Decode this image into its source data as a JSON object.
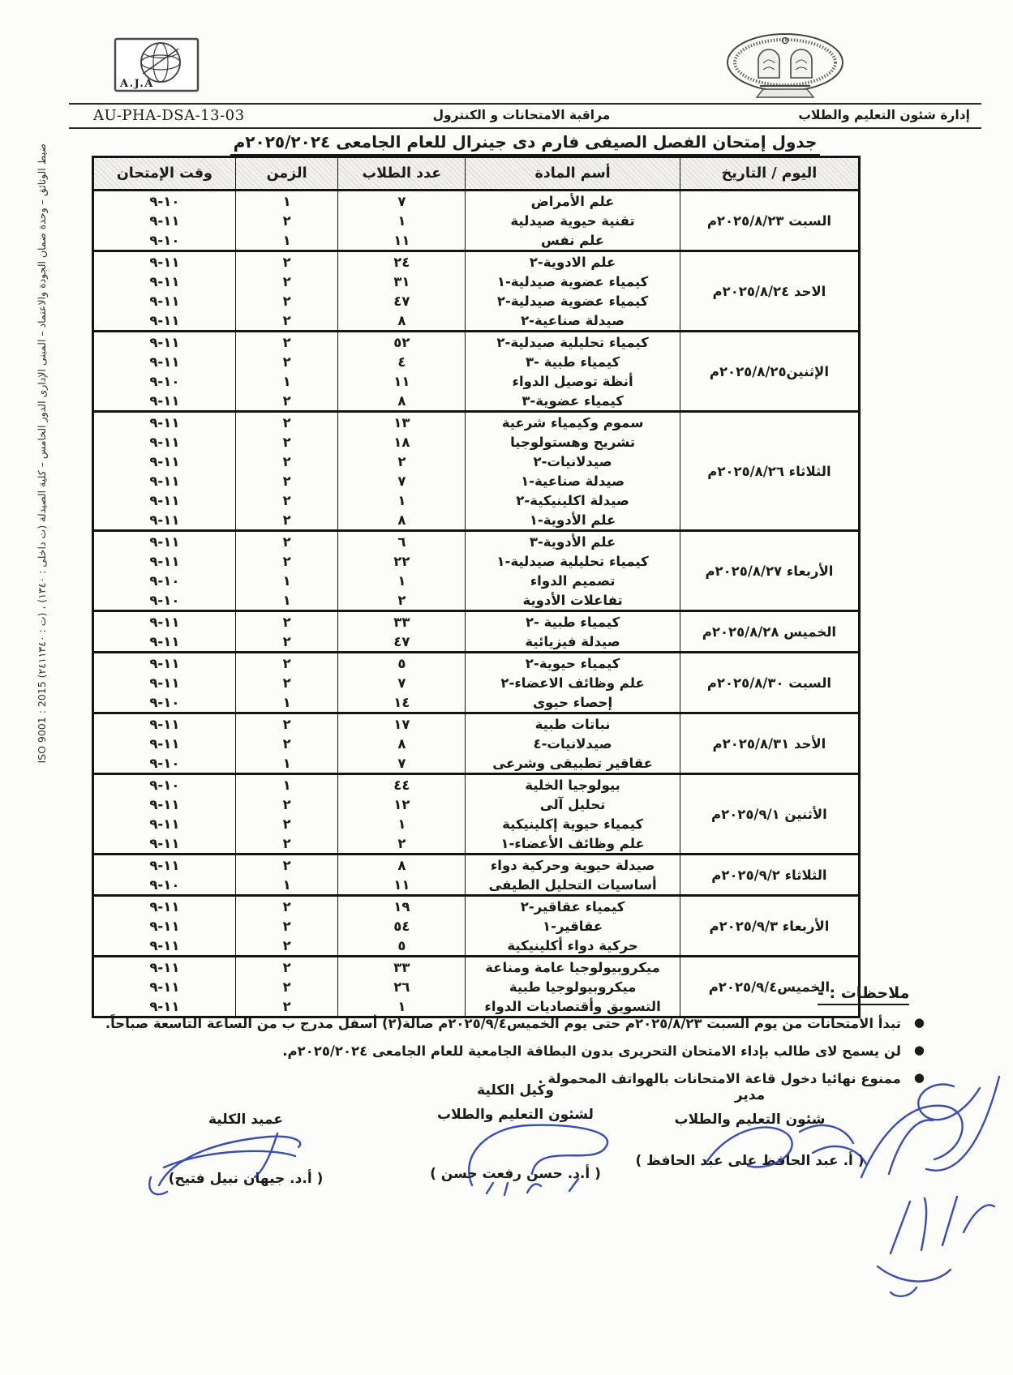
{
  "header": {
    "doc_code": "AU-PHA-DSA-13-03",
    "dept_right": "إدارة شئون التعليم والطلاب",
    "dept_center": "مراقبة الامتحانات و الكنترول",
    "aja_logo_text": "A.J.A",
    "title": "جدول إمتحان الفصل الصيفى فارم دى جينرال للعام الجامعى ٢٠٢٥/٢٠٢٤م"
  },
  "side_note_text": "ضبط الوثائق – وحدة ضمان الجودة والاعتماد – المبنى الإدارى الدور الخامس – كلية الصيدلة (ت داخلى : ١٣٤٠) ، (ت : ٢٤١١٣٤٠)  ISO 9001 : 2015",
  "table": {
    "headers": [
      "اليوم / التاريخ",
      "أسم المادة",
      "عدد الطلاب",
      "الزمن",
      "وقت الإمتحان"
    ],
    "groups": [
      {
        "date": "السبت ٢٠٢٥/٨/٢٣م",
        "rows": [
          {
            "subject": "علم الأمراض",
            "students": "٧",
            "duration": "١",
            "time": "١٠-٩"
          },
          {
            "subject": "تقنية حيوية صيدلية",
            "students": "١",
            "duration": "٢",
            "time": "١١-٩"
          },
          {
            "subject": "علم نفس",
            "students": "١١",
            "duration": "١",
            "time": "١٠-٩"
          }
        ]
      },
      {
        "date": "الاحد ٢٠٢٥/٨/٢٤م",
        "rows": [
          {
            "subject": "علم الادوية-٢",
            "students": "٢٤",
            "duration": "٢",
            "time": "١١-٩"
          },
          {
            "subject": "كيمياء عضوية صيدلية-١",
            "students": "٣١",
            "duration": "٢",
            "time": "١١-٩"
          },
          {
            "subject": "كيمياء عضوية صيدلية-٢",
            "students": "٤٧",
            "duration": "٢",
            "time": "١١-٩"
          },
          {
            "subject": "صيدلة صناعية-٢",
            "students": "٨",
            "duration": "٢",
            "time": "١١-٩"
          }
        ]
      },
      {
        "date": "الإثنين٢٠٢٥/٨/٢٥م",
        "rows": [
          {
            "subject": "كيمياء تحليلية صيدلية-٢",
            "students": "٥٢",
            "duration": "٢",
            "time": "١١-٩"
          },
          {
            "subject": "كيمياء طبية -٣",
            "students": "٤",
            "duration": "٢",
            "time": "١١-٩"
          },
          {
            "subject": "أنظة توصيل الدواء",
            "students": "١١",
            "duration": "١",
            "time": "١٠-٩"
          },
          {
            "subject": "كيمياء عضوية-٣",
            "students": "٨",
            "duration": "٢",
            "time": "١١-٩"
          }
        ]
      },
      {
        "date": "الثلاثاء ٢٠٢٥/٨/٢٦م",
        "rows": [
          {
            "subject": "سموم وكيمياء شرعية",
            "students": "١٣",
            "duration": "٢",
            "time": "١١-٩"
          },
          {
            "subject": "تشريح وهستولوجيا",
            "students": "١٨",
            "duration": "٢",
            "time": "١١-٩"
          },
          {
            "subject": "صيدلانيات-٢",
            "students": "٢",
            "duration": "٢",
            "time": "١١-٩"
          },
          {
            "subject": "صيدلة صناعية-١",
            "students": "٧",
            "duration": "٢",
            "time": "١١-٩"
          },
          {
            "subject": "صيدلة اكلينيكية-٢",
            "students": "١",
            "duration": "٢",
            "time": "١١-٩"
          },
          {
            "subject": "علم الأدوية-١",
            "students": "٨",
            "duration": "٢",
            "time": "١١-٩"
          }
        ]
      },
      {
        "date": "الأربعاء ٢٠٢٥/٨/٢٧م",
        "rows": [
          {
            "subject": "علم الأدوية-٣",
            "students": "٦",
            "duration": "٢",
            "time": "١١-٩"
          },
          {
            "subject": "كيمياء تحليلية صيدلية-١",
            "students": "٢٢",
            "duration": "٢",
            "time": "١١-٩"
          },
          {
            "subject": "تصميم الدواء",
            "students": "١",
            "duration": "١",
            "time": "١٠-٩"
          },
          {
            "subject": "تفاعلات الأدوية",
            "students": "٢",
            "duration": "١",
            "time": "١٠-٩"
          }
        ]
      },
      {
        "date": "الخميس ٢٠٢٥/٨/٢٨م",
        "rows": [
          {
            "subject": "كيمياء طبية -٢",
            "students": "٣٣",
            "duration": "٢",
            "time": "١١-٩"
          },
          {
            "subject": "صيدلة فيزيائية",
            "students": "٤٧",
            "duration": "٢",
            "time": "١١-٩"
          }
        ]
      },
      {
        "date": "السبت ٢٠٢٥/٨/٣٠م",
        "rows": [
          {
            "subject": "كيمياء حيوية-٢",
            "students": "٥",
            "duration": "٢",
            "time": "١١-٩"
          },
          {
            "subject": "علم وظائف الاعضاء-٢",
            "students": "٧",
            "duration": "٢",
            "time": "١١-٩"
          },
          {
            "subject": "إحصاء حيوى",
            "students": "١٤",
            "duration": "١",
            "time": "١٠-٩"
          }
        ]
      },
      {
        "date": "الأحد ٢٠٢٥/٨/٣١م",
        "rows": [
          {
            "subject": "نباتات طبية",
            "students": "١٧",
            "duration": "٢",
            "time": "١١-٩"
          },
          {
            "subject": "صيدلانيات-٤",
            "students": "٨",
            "duration": "٢",
            "time": "١١-٩"
          },
          {
            "subject": "عقاقير تطبيقى وشرعى",
            "students": "٧",
            "duration": "١",
            "time": "١٠-٩"
          }
        ]
      },
      {
        "date": "الأثنين ٢٠٢٥/٩/١م",
        "rows": [
          {
            "subject": "بيولوجيا الخلية",
            "students": "٤٤",
            "duration": "١",
            "time": "١٠-٩"
          },
          {
            "subject": "تحليل آلى",
            "students": "١٢",
            "duration": "٢",
            "time": "١١-٩"
          },
          {
            "subject": "كيمياء حيوية إكلينيكية",
            "students": "١",
            "duration": "٢",
            "time": "١١-٩"
          },
          {
            "subject": "علم وظائف الأعضاء-١",
            "students": "٢",
            "duration": "٢",
            "time": "١١-٩"
          }
        ]
      },
      {
        "date": "الثلاثاء ٢٠٢٥/٩/٢م",
        "rows": [
          {
            "subject": "صيدلة حيوية وحركية دواء",
            "students": "٨",
            "duration": "٢",
            "time": "١١-٩"
          },
          {
            "subject": "أساسيات التحليل الطيفى",
            "students": "١١",
            "duration": "١",
            "time": "١٠-٩"
          }
        ]
      },
      {
        "date": "الأربعاء ٢٠٢٥/٩/٣م",
        "rows": [
          {
            "subject": "كيمياء عقاقير-٢",
            "students": "١٩",
            "duration": "٢",
            "time": "١١-٩"
          },
          {
            "subject": "عقاقير-١",
            "students": "٥٤",
            "duration": "٢",
            "time": "١١-٩"
          },
          {
            "subject": "حركية دواء أكلينيكية",
            "students": "٥",
            "duration": "٢",
            "time": "١١-٩"
          }
        ]
      },
      {
        "date": "الخميس٢٠٢٥/٩/٤م",
        "rows": [
          {
            "subject": "ميكروبيولوجيا عامة ومناعة",
            "students": "٣٣",
            "duration": "٢",
            "time": "١١-٩"
          },
          {
            "subject": "ميكروبيولوجيا طبية",
            "students": "٢٦",
            "duration": "٢",
            "time": "١١-٩"
          },
          {
            "subject": "التسويق وأقتصاديات الدواء",
            "students": "١",
            "duration": "٢",
            "time": "١١-٩"
          }
        ]
      }
    ]
  },
  "notes": {
    "heading": "ملاحظات : -",
    "bullet": "●",
    "items": [
      "تبدأ الامتحانات من يوم السبت ٢٠٢٥/٨/٢٣م حتى يوم الخميس٢٠٢٥/٩/٤م صالة(٢) أسفل مدرج ب من الساعة التاسعة صباحاً.",
      "لن يسمح لاى طالب بإداء الامتحان التحريرى بدون البطاقة الجامعية للعام الجامعى ٢٠٢٥/٢٠٢٤م.",
      "ممنوع نهائيا دخول قاعة الامتحانات بالهواتف المحمولة ."
    ]
  },
  "signatures": [
    {
      "role_line1": "مدير",
      "role_line2": "شئون التعليم والطلاب",
      "name": "( أ. عبد الحافظ على عبد الحافظ )"
    },
    {
      "role_line1": "وكيل الكلية",
      "role_line2": "لشئون التعليم والطلاب",
      "name": "( أ.د. حسن رفعت حسن )"
    },
    {
      "role_line1": "",
      "role_line2": "عميد الكلية",
      "name": "( أ.د. جيهان نبيل فتيح)"
    }
  ],
  "colors": {
    "ink": "#1b1b1b",
    "signature_blue": "#2b3fae",
    "table_border": "#141414"
  }
}
